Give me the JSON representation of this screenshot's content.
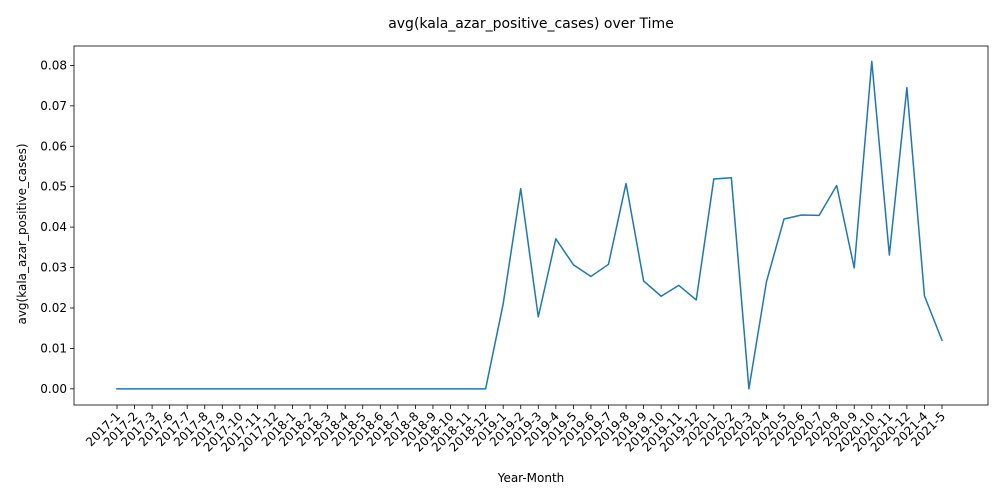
{
  "chart_data": {
    "type": "line",
    "title": "avg(kala_azar_positive_cases) over Time",
    "xlabel": "Year-Month",
    "ylabel": "avg(kala_azar_positive_cases)",
    "ylim": [
      -0.004,
      0.0848
    ],
    "yticks": [
      0.0,
      0.01,
      0.02,
      0.03,
      0.04,
      0.05,
      0.06,
      0.07,
      0.08
    ],
    "ytick_labels": [
      "0.00",
      "0.01",
      "0.02",
      "0.03",
      "0.04",
      "0.05",
      "0.06",
      "0.07",
      "0.08"
    ],
    "grid": false,
    "legend": "none",
    "line_color": "#1f77b4",
    "x": [
      "2017-1",
      "2017-2",
      "2017-3",
      "2017-6",
      "2017-7",
      "2017-8",
      "2017-9",
      "2017-10",
      "2017-11",
      "2017-12",
      "2018-1",
      "2018-2",
      "2018-3",
      "2018-4",
      "2018-5",
      "2018-6",
      "2018-7",
      "2018-8",
      "2018-9",
      "2018-10",
      "2018-11",
      "2018-12",
      "2019-1",
      "2019-2",
      "2019-3",
      "2019-4",
      "2019-5",
      "2019-6",
      "2019-7",
      "2019-8",
      "2019-9",
      "2019-10",
      "2019-11",
      "2019-12",
      "2020-1",
      "2020-2",
      "2020-3",
      "2020-4",
      "2020-5",
      "2020-6",
      "2020-7",
      "2020-8",
      "2020-9",
      "2020-10",
      "2020-11",
      "2020-12",
      "2021-4",
      "2021-5"
    ],
    "series": [
      {
        "values": [
          0,
          0,
          0,
          0,
          0,
          0,
          0,
          0,
          0,
          0,
          0,
          0,
          0,
          0,
          0,
          0,
          0,
          0,
          0,
          0,
          0,
          0,
          0.021,
          0.0495,
          0.0178,
          0.0371,
          0.0307,
          0.0278,
          0.0308,
          0.0508,
          0.0267,
          0.0229,
          0.0256,
          0.022,
          0.0519,
          0.0522,
          0.0,
          0.0265,
          0.042,
          0.043,
          0.0429,
          0.0503,
          0.0299,
          0.081,
          0.0331,
          0.0745,
          0.023,
          0.012
        ]
      }
    ]
  }
}
